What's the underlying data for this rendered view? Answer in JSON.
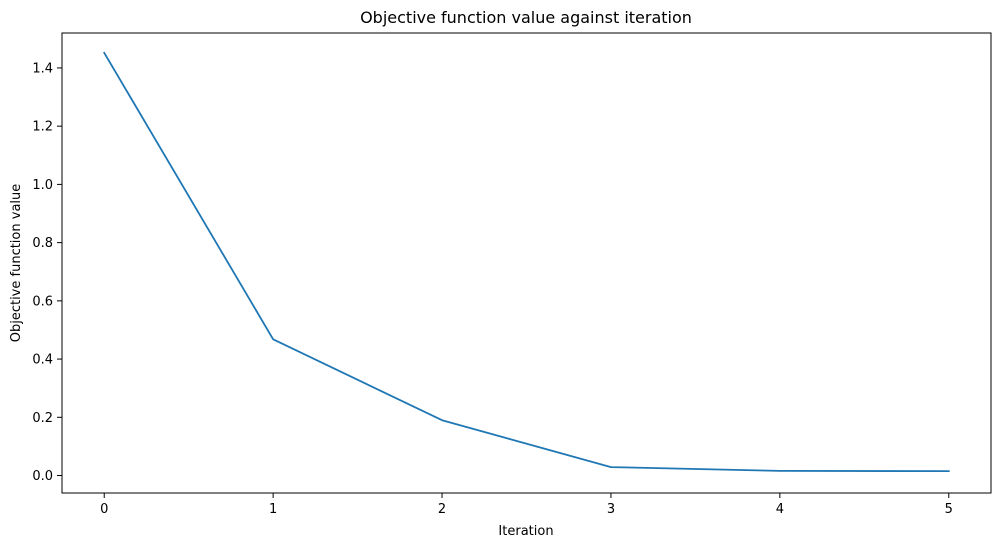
{
  "chart_data": {
    "type": "line",
    "title": "Objective function value against iteration",
    "xlabel": "Iteration",
    "ylabel": "Objective function value",
    "xlim": [
      -0.25,
      5.25
    ],
    "ylim": [
      -0.06,
      1.52
    ],
    "x_ticks": [
      0,
      1,
      2,
      3,
      4,
      5
    ],
    "x_tick_labels": [
      "0",
      "1",
      "2",
      "3",
      "4",
      "5"
    ],
    "y_ticks": [
      0.0,
      0.2,
      0.4,
      0.6,
      0.8,
      1.0,
      1.2,
      1.4
    ],
    "y_tick_labels": [
      "0.0",
      "0.2",
      "0.4",
      "0.6",
      "0.8",
      "1.0",
      "1.2",
      "1.4"
    ],
    "grid": false,
    "series": [
      {
        "color": "#1f77b4",
        "x": [
          0,
          1,
          2,
          3,
          4,
          5
        ],
        "y": [
          1.452,
          0.468,
          0.19,
          0.029,
          0.016,
          0.015
        ]
      }
    ]
  }
}
